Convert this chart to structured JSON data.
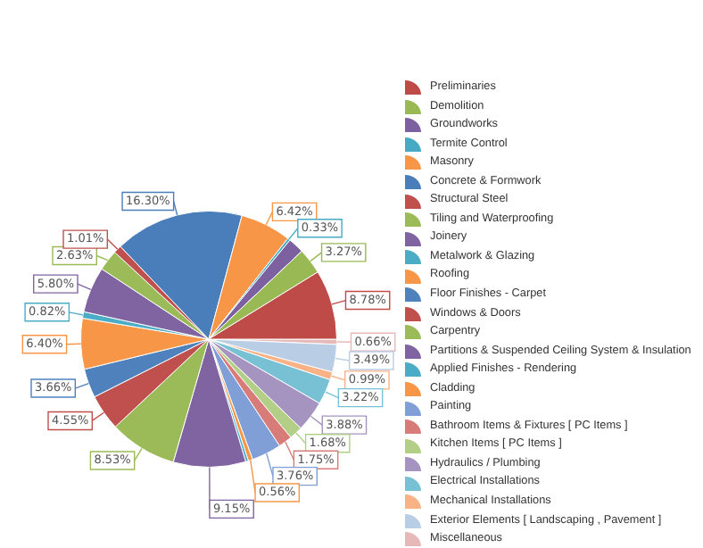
{
  "chart_data": {
    "type": "pie",
    "categories": [
      "Preliminaries",
      "Demolition",
      "Groundworks",
      "Termite Control",
      "Masonry",
      "Concrete  & Formwork",
      "Structural Steel",
      "Tiling and Waterproofing",
      "Joinery",
      "Metalwork  & Glazing",
      "Roofing",
      "Floor Finishes  -  Carpet",
      "Windows  &  Doors",
      "Carpentry",
      "Partitions & Suspended Ceiling System & Insulation",
      "Applied Finishes  -  Rendering",
      "Cladding",
      "Painting",
      "Bathroom  Items & Fixtures [ PC Items ]",
      "Kitchen Items  [ PC Items ]",
      "Hydraulics / Plumbing",
      "Electrical Installations",
      "Mechanical Installations",
      "Exterior Elements   [ Landscaping , Pavement ]",
      "Miscellaneous"
    ],
    "values": [
      8.78,
      3.27,
      2.02,
      0.33,
      6.42,
      16.3,
      1.01,
      2.63,
      5.8,
      0.82,
      6.4,
      3.66,
      4.55,
      8.53,
      9.15,
      0.34,
      0.56,
      3.76,
      1.75,
      1.68,
      3.88,
      3.22,
      0.99,
      3.49,
      0.66
    ],
    "colors": [
      "#be4b48",
      "#98b954",
      "#7d60a0",
      "#46aac5",
      "#f79646",
      "#4a7ebb",
      "#c0504d",
      "#9bbb59",
      "#8064a2",
      "#4bacc6",
      "#f79646",
      "#4f81bd",
      "#c0504d",
      "#9bbb59",
      "#8064a2",
      "#4bacc6",
      "#f79646",
      "#7f9fd6",
      "#d87c7a",
      "#b3cf87",
      "#a593c0",
      "#78c1d5",
      "#f9b285",
      "#b9cde5",
      "#e6b9b8"
    ],
    "value_labels": [
      "8.78%",
      "3.27%",
      null,
      "0.33%",
      "6.42%",
      "16.30%",
      "1.01%",
      "2.63%",
      "5.80%",
      "0.82%",
      "6.40%",
      "3.66%",
      "4.55%",
      "8.53%",
      "9.15%",
      null,
      "0.56%",
      "3.76%",
      "1.75%",
      "1.68%",
      "3.88%",
      "3.22%",
      "0.99%",
      "3.49%",
      "0.66%"
    ],
    "legend": "right"
  }
}
